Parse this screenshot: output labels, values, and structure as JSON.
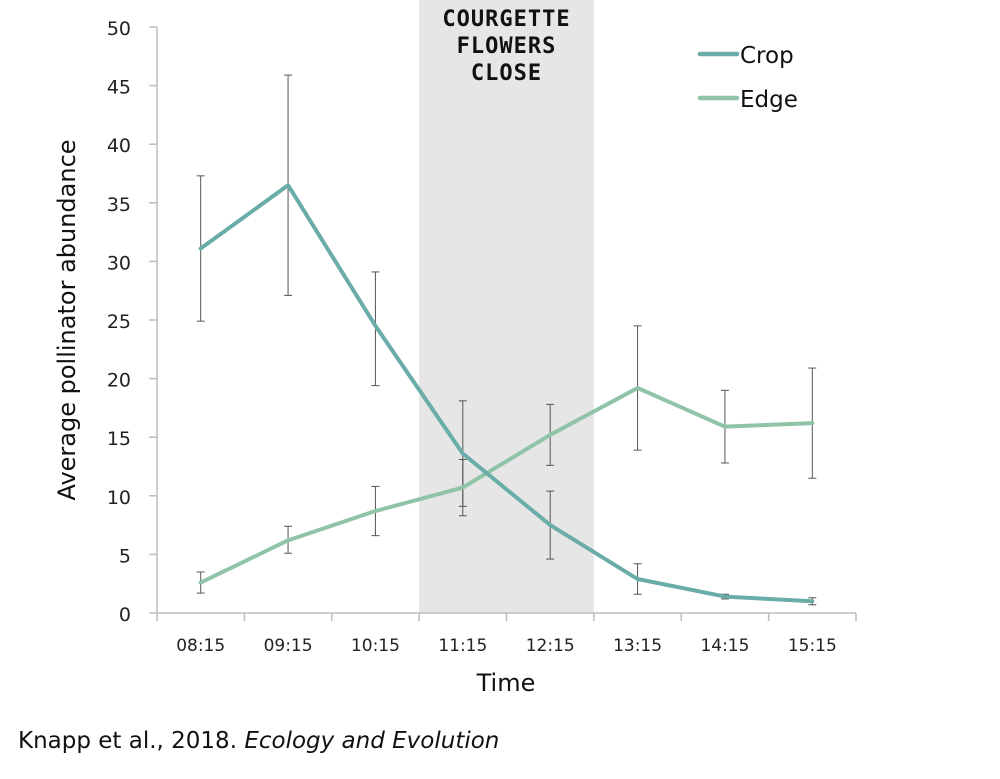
{
  "chart_data": {
    "type": "line",
    "xlabel": "Time",
    "ylabel": "Average pollinator abundance",
    "categories": [
      "08:15",
      "09:15",
      "10:15",
      "11:15",
      "12:15",
      "13:15",
      "14:15",
      "15:15"
    ],
    "ylim": [
      0,
      50
    ],
    "yticks": [
      0,
      5,
      10,
      15,
      20,
      25,
      30,
      35,
      40,
      45,
      50
    ],
    "grid": false,
    "legend_position": "top-right",
    "series": [
      {
        "name": "Crop",
        "color": "#6aada8",
        "values": [
          31.1,
          36.5,
          24.5,
          13.6,
          7.5,
          2.9,
          1.4,
          1.0
        ],
        "error_low": [
          24.9,
          27.1,
          19.4,
          9.1,
          4.6,
          1.6,
          1.2,
          0.7
        ],
        "error_high": [
          37.3,
          45.9,
          29.1,
          18.1,
          10.4,
          4.2,
          1.6,
          1.3
        ]
      },
      {
        "name": "Edge",
        "color": "#8fc4a8",
        "values": [
          2.6,
          6.2,
          8.7,
          10.7,
          15.2,
          19.2,
          15.9,
          16.2
        ],
        "error_low": [
          1.7,
          5.1,
          6.6,
          8.3,
          12.6,
          13.9,
          12.8,
          11.5
        ],
        "error_high": [
          3.5,
          7.4,
          10.8,
          13.1,
          17.8,
          24.5,
          19.0,
          20.9
        ]
      }
    ],
    "shaded_region": {
      "from_category_index": 2.5,
      "to_category_index": 4.5,
      "color": "#e6e6e6"
    },
    "annotation": {
      "lines": [
        "COURGETTE",
        "FLOWERS",
        "CLOSE"
      ]
    }
  },
  "citation": {
    "author": "Knapp",
    "rest": " et al., 2018. ",
    "journal": "Ecology and Evolution"
  }
}
